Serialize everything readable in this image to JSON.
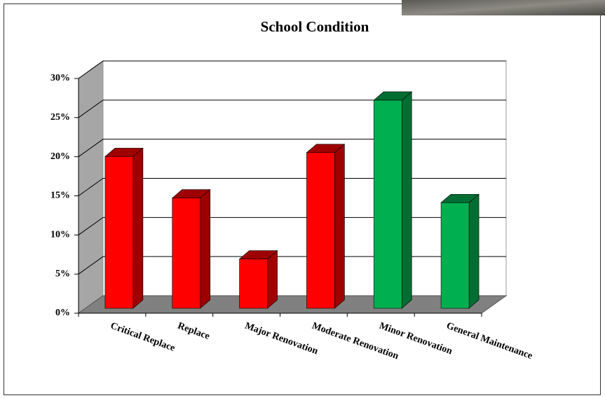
{
  "chart_data": {
    "type": "bar3d",
    "title": "School Condition",
    "categories": [
      "Critical Replace",
      "Replace",
      "Major Renovation",
      "Moderate Renovation",
      "Minor Renovation",
      "General Maintenance"
    ],
    "values": [
      19.4,
      14.1,
      6.3,
      19.9,
      26.6,
      13.5
    ],
    "colors": [
      "#ff0000",
      "#ff0000",
      "#ff0000",
      "#ff0000",
      "#00b050",
      "#00b050"
    ],
    "ylim": [
      0,
      30
    ],
    "yticks": [
      {
        "value": 0,
        "label": "0%"
      },
      {
        "value": 5,
        "label": "5%"
      },
      {
        "value": 10,
        "label": "10%"
      },
      {
        "value": 15,
        "label": "15%"
      },
      {
        "value": 20,
        "label": "20%"
      },
      {
        "value": 25,
        "label": "25%"
      },
      {
        "value": 30,
        "label": "30%"
      }
    ],
    "grid": true
  }
}
